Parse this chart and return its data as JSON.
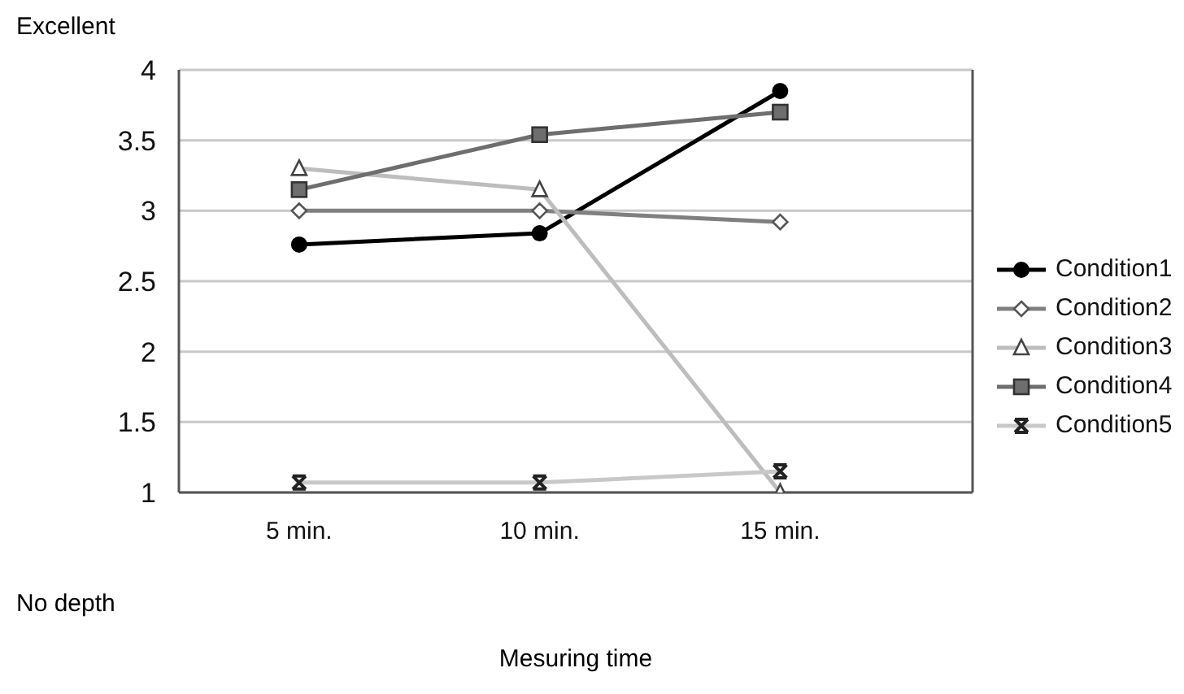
{
  "chart_data": {
    "type": "line",
    "xlabel": "Mesuring time",
    "annotations": [
      "Excellent",
      "No depth"
    ],
    "categories": [
      "5 min.",
      "10 min.",
      "15 min."
    ],
    "series": [
      {
        "name": "Condition1",
        "color": "#000000",
        "marker": "circle",
        "values": [
          2.76,
          2.84,
          3.85
        ]
      },
      {
        "name": "Condition2",
        "color": "#808080",
        "marker": "diamond",
        "values": [
          3,
          3,
          2.92
        ]
      },
      {
        "name": "Condition3",
        "color": "#bdbdbd",
        "marker": "triangle",
        "values": [
          3.3,
          3.15,
          1
        ]
      },
      {
        "name": "Condition4",
        "color": "#6e6e6e",
        "marker": "square",
        "values": [
          3.15,
          3.54,
          3.7
        ]
      },
      {
        "name": "Condition5",
        "color": "#c8c8c8",
        "marker": "cross",
        "values": [
          1.07,
          1.07,
          1.15
        ]
      }
    ],
    "ylim": [
      1,
      4
    ],
    "yticks": [
      1,
      1.5,
      2,
      2.5,
      3,
      3.5,
      4
    ],
    "grid": "y",
    "legend": "right"
  }
}
